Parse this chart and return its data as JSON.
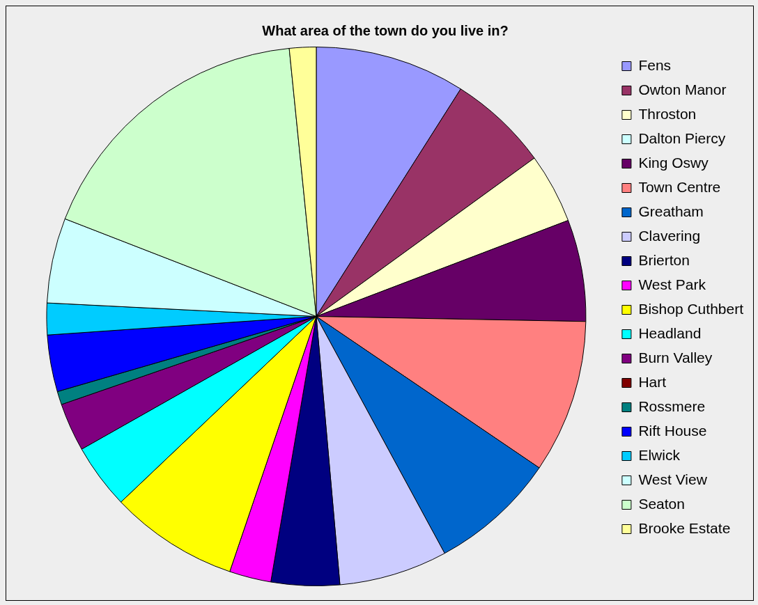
{
  "chart_data": {
    "type": "pie",
    "title": "What area of the town do you live in?",
    "categories": [
      "Fens",
      "Owton Manor",
      "Throston",
      "Dalton Piercy",
      "King Oswy",
      "Town Centre",
      "Greatham",
      "Clavering",
      "Brierton",
      "West Park",
      "Bishop Cuthbert",
      "Headland",
      "Burn Valley",
      "Hart",
      "Rossmere",
      "Rift House",
      "Elwick",
      "West View",
      "Seaton",
      "Brooke Estate"
    ],
    "values": [
      9.0,
      6.0,
      4.2,
      0,
      6.1,
      9.2,
      7.6,
      6.5,
      4.1,
      2.5,
      7.7,
      3.9,
      2.9,
      0,
      0.8,
      3.4,
      1.9,
      5.1,
      17.5,
      1.6
    ],
    "colors": [
      "#9999ff",
      "#993366",
      "#ffffcc",
      "#ccffff",
      "#660066",
      "#ff8080",
      "#0066cc",
      "#ccccff",
      "#000080",
      "#ff00ff",
      "#ffff00",
      "#00ffff",
      "#800080",
      "#800000",
      "#008080",
      "#0000ff",
      "#00ccff",
      "#ccffff",
      "#ccffcc",
      "#ffff99"
    ],
    "legend": "right"
  }
}
